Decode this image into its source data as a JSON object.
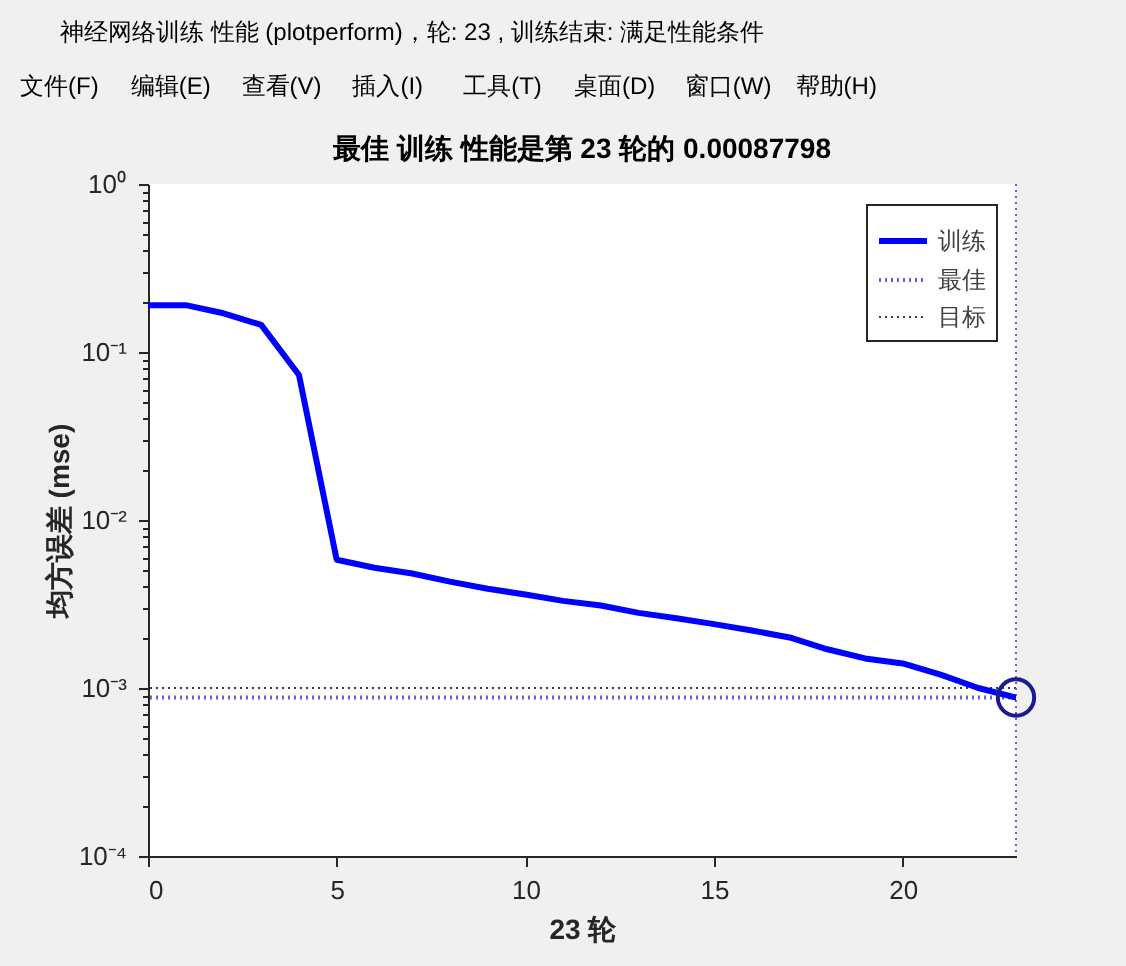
{
  "chart_data": {
    "type": "line",
    "title": "最佳 训练 性能是第 23 轮的 0.00087798",
    "xlabel": "23 轮",
    "ylabel": "均方误差 (mse)",
    "annotations": [
      "神经网络训练 性能 (plotperform)，轮: 23 , 训练结束: 满足性能条件",
      "文件(F)",
      "编辑(E)",
      "查看(V)",
      "插入(I)",
      "工具(T)",
      "桌面(D)",
      "窗口(W)",
      "帮助(H)"
    ],
    "x": [
      0,
      1,
      2,
      3,
      4,
      5,
      6,
      7,
      8,
      9,
      10,
      11,
      12,
      13,
      14,
      15,
      16,
      17,
      18,
      19,
      20,
      21,
      22,
      23
    ],
    "series": [
      {
        "name": "训练",
        "color": "#0000ff",
        "line_style": "solid",
        "values": [
          0.19,
          0.19,
          0.17,
          0.145,
          0.073,
          0.0058,
          0.0052,
          0.0048,
          0.0043,
          0.0039,
          0.0036,
          0.0033,
          0.0031,
          0.0028,
          0.0026,
          0.0024,
          0.0022,
          0.002,
          0.0017,
          0.0015,
          0.0014,
          0.0012,
          0.001,
          0.00087798
        ]
      },
      {
        "type": "scatter",
        "color": "#1c1c8c",
        "marker": "circle",
        "x": [
          23
        ],
        "values": [
          0.00087798
        ]
      }
    ],
    "ref_lines": [
      {
        "axis": "y",
        "value": 0.00087798,
        "label": "最佳",
        "color": "#6262dc",
        "line_style": "dotted"
      },
      {
        "axis": "x",
        "value": 23,
        "color": "#6262dc",
        "line_style": "dotted"
      },
      {
        "axis": "y",
        "value": 0.001,
        "label": "目标",
        "color": "#3a3a3a",
        "line_style": "dotted"
      }
    ],
    "xlim": [
      0,
      23
    ],
    "xticks": [
      0,
      5,
      10,
      15,
      20
    ],
    "ylim": [
      0.0001,
      1
    ],
    "yticks": [
      {
        "value": 0.0001,
        "label": "10⁻⁴"
      },
      {
        "value": 0.0002,
        "label": null
      },
      {
        "value": 0.0003,
        "label": null
      },
      {
        "value": 0.0004,
        "label": null
      },
      {
        "value": 0.0005,
        "label": null
      },
      {
        "value": 0.0006,
        "label": null
      },
      {
        "value": 0.0007,
        "label": null
      },
      {
        "value": 0.0008,
        "label": null
      },
      {
        "value": 0.0009,
        "label": null
      },
      {
        "value": 0.001,
        "label": "10⁻³"
      },
      {
        "value": 0.002,
        "label": null
      },
      {
        "value": 0.003,
        "label": null
      },
      {
        "value": 0.004,
        "label": null
      },
      {
        "value": 0.005,
        "label": null
      },
      {
        "value": 0.006,
        "label": null
      },
      {
        "value": 0.007,
        "label": null
      },
      {
        "value": 0.008,
        "label": null
      },
      {
        "value": 0.009,
        "label": null
      },
      {
        "value": 0.01,
        "label": "10⁻²"
      },
      {
        "value": 0.02,
        "label": null
      },
      {
        "value": 0.03,
        "label": null
      },
      {
        "value": 0.04,
        "label": null
      },
      {
        "value": 0.05,
        "label": null
      },
      {
        "value": 0.06,
        "label": null
      },
      {
        "value": 0.07,
        "label": null
      },
      {
        "value": 0.08,
        "label": null
      },
      {
        "value": 0.09,
        "label": null
      },
      {
        "value": 0.1,
        "label": "10⁻¹"
      },
      {
        "value": 0.2,
        "label": null
      },
      {
        "value": 0.3,
        "label": null
      },
      {
        "value": 0.4,
        "label": null
      },
      {
        "value": 0.5,
        "label": null
      },
      {
        "value": 0.6,
        "label": null
      },
      {
        "value": 0.7,
        "label": null
      },
      {
        "value": 0.8,
        "label": null
      },
      {
        "value": 0.9,
        "label": null
      },
      {
        "value": 1,
        "label": "10⁰"
      }
    ],
    "log": true,
    "legend": "top right"
  }
}
